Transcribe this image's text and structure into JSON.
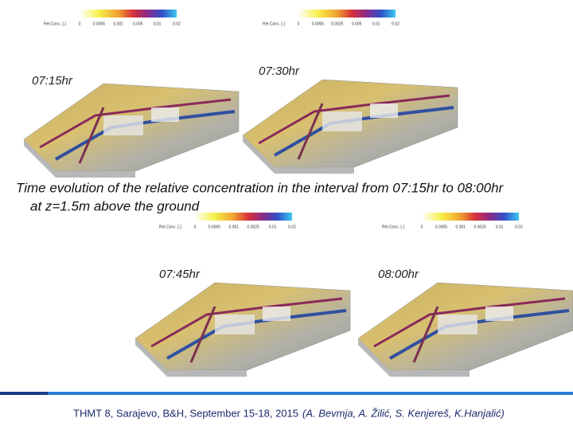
{
  "panels": [
    {
      "time": "07:15hr",
      "colorbar": {
        "title": "Rel.Conc. [-]",
        "ticks": [
          "0",
          "0.0005",
          "0.001",
          "0.005",
          "0.01",
          "0.02"
        ]
      }
    },
    {
      "time": "07:30hr",
      "colorbar": {
        "title": "Rel.Conc. [-]",
        "ticks": [
          "0",
          "0.0005",
          "0.0025",
          "0.005",
          "0.01",
          "0.02"
        ]
      }
    },
    {
      "time": "07:45hr",
      "colorbar": {
        "title": "Rel.Conc. [-]",
        "ticks": [
          "0",
          "0.0005",
          "0.001",
          "0.0025",
          "0.01",
          "0.02"
        ]
      }
    },
    {
      "time": "08:00hr",
      "colorbar": {
        "title": "Rel.Conc. [-]",
        "ticks": [
          "0",
          "0.0005",
          "0.001",
          "0.0025",
          "0.01",
          "0.02"
        ]
      }
    }
  ],
  "caption": {
    "line1": "Time evolution of the relative concentration in the interval from 07:15hr to 08:00hr",
    "line2": "at z=1.5m above the ground"
  },
  "footer": {
    "conference": "THMT 8, Sarajevo, B&H, September 15-18, 2015",
    "authors": "(A. Bevmja, A. Žilić, S. Kenjereš, K.Hanjalić)"
  }
}
